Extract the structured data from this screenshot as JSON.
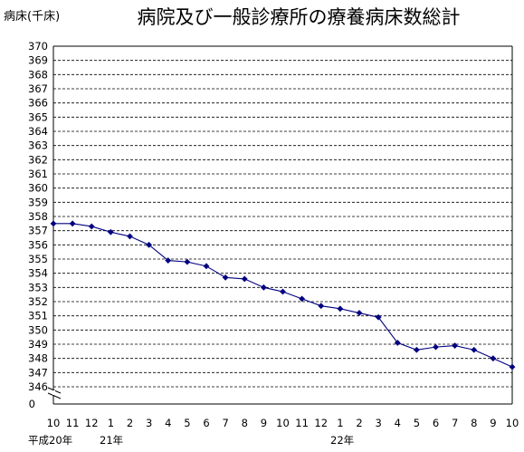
{
  "chart_data": {
    "type": "line",
    "title": "病院及び一般診療所の療養病床数総計",
    "ylabel": "病床(千床)",
    "xlabel": "",
    "ylim": [
      346,
      370
    ],
    "y_break_label": "0",
    "grid": true,
    "categories": [
      "10",
      "11",
      "12",
      "1",
      "2",
      "3",
      "4",
      "5",
      "6",
      "7",
      "8",
      "9",
      "10",
      "11",
      "12",
      "1",
      "2",
      "3",
      "4",
      "5",
      "6",
      "7",
      "8",
      "9",
      "10"
    ],
    "era_labels": [
      "平成20年",
      "21年",
      "22年"
    ],
    "series": [
      {
        "color": "#000080",
        "values": [
          357.5,
          357.5,
          357.3,
          356.9,
          356.6,
          356.0,
          354.9,
          354.8,
          354.5,
          353.7,
          353.6,
          353.0,
          352.7,
          352.2,
          351.7,
          351.5,
          351.2,
          350.9,
          349.1,
          348.6,
          348.8,
          348.9,
          348.6,
          348.0,
          347.4
        ]
      }
    ]
  }
}
